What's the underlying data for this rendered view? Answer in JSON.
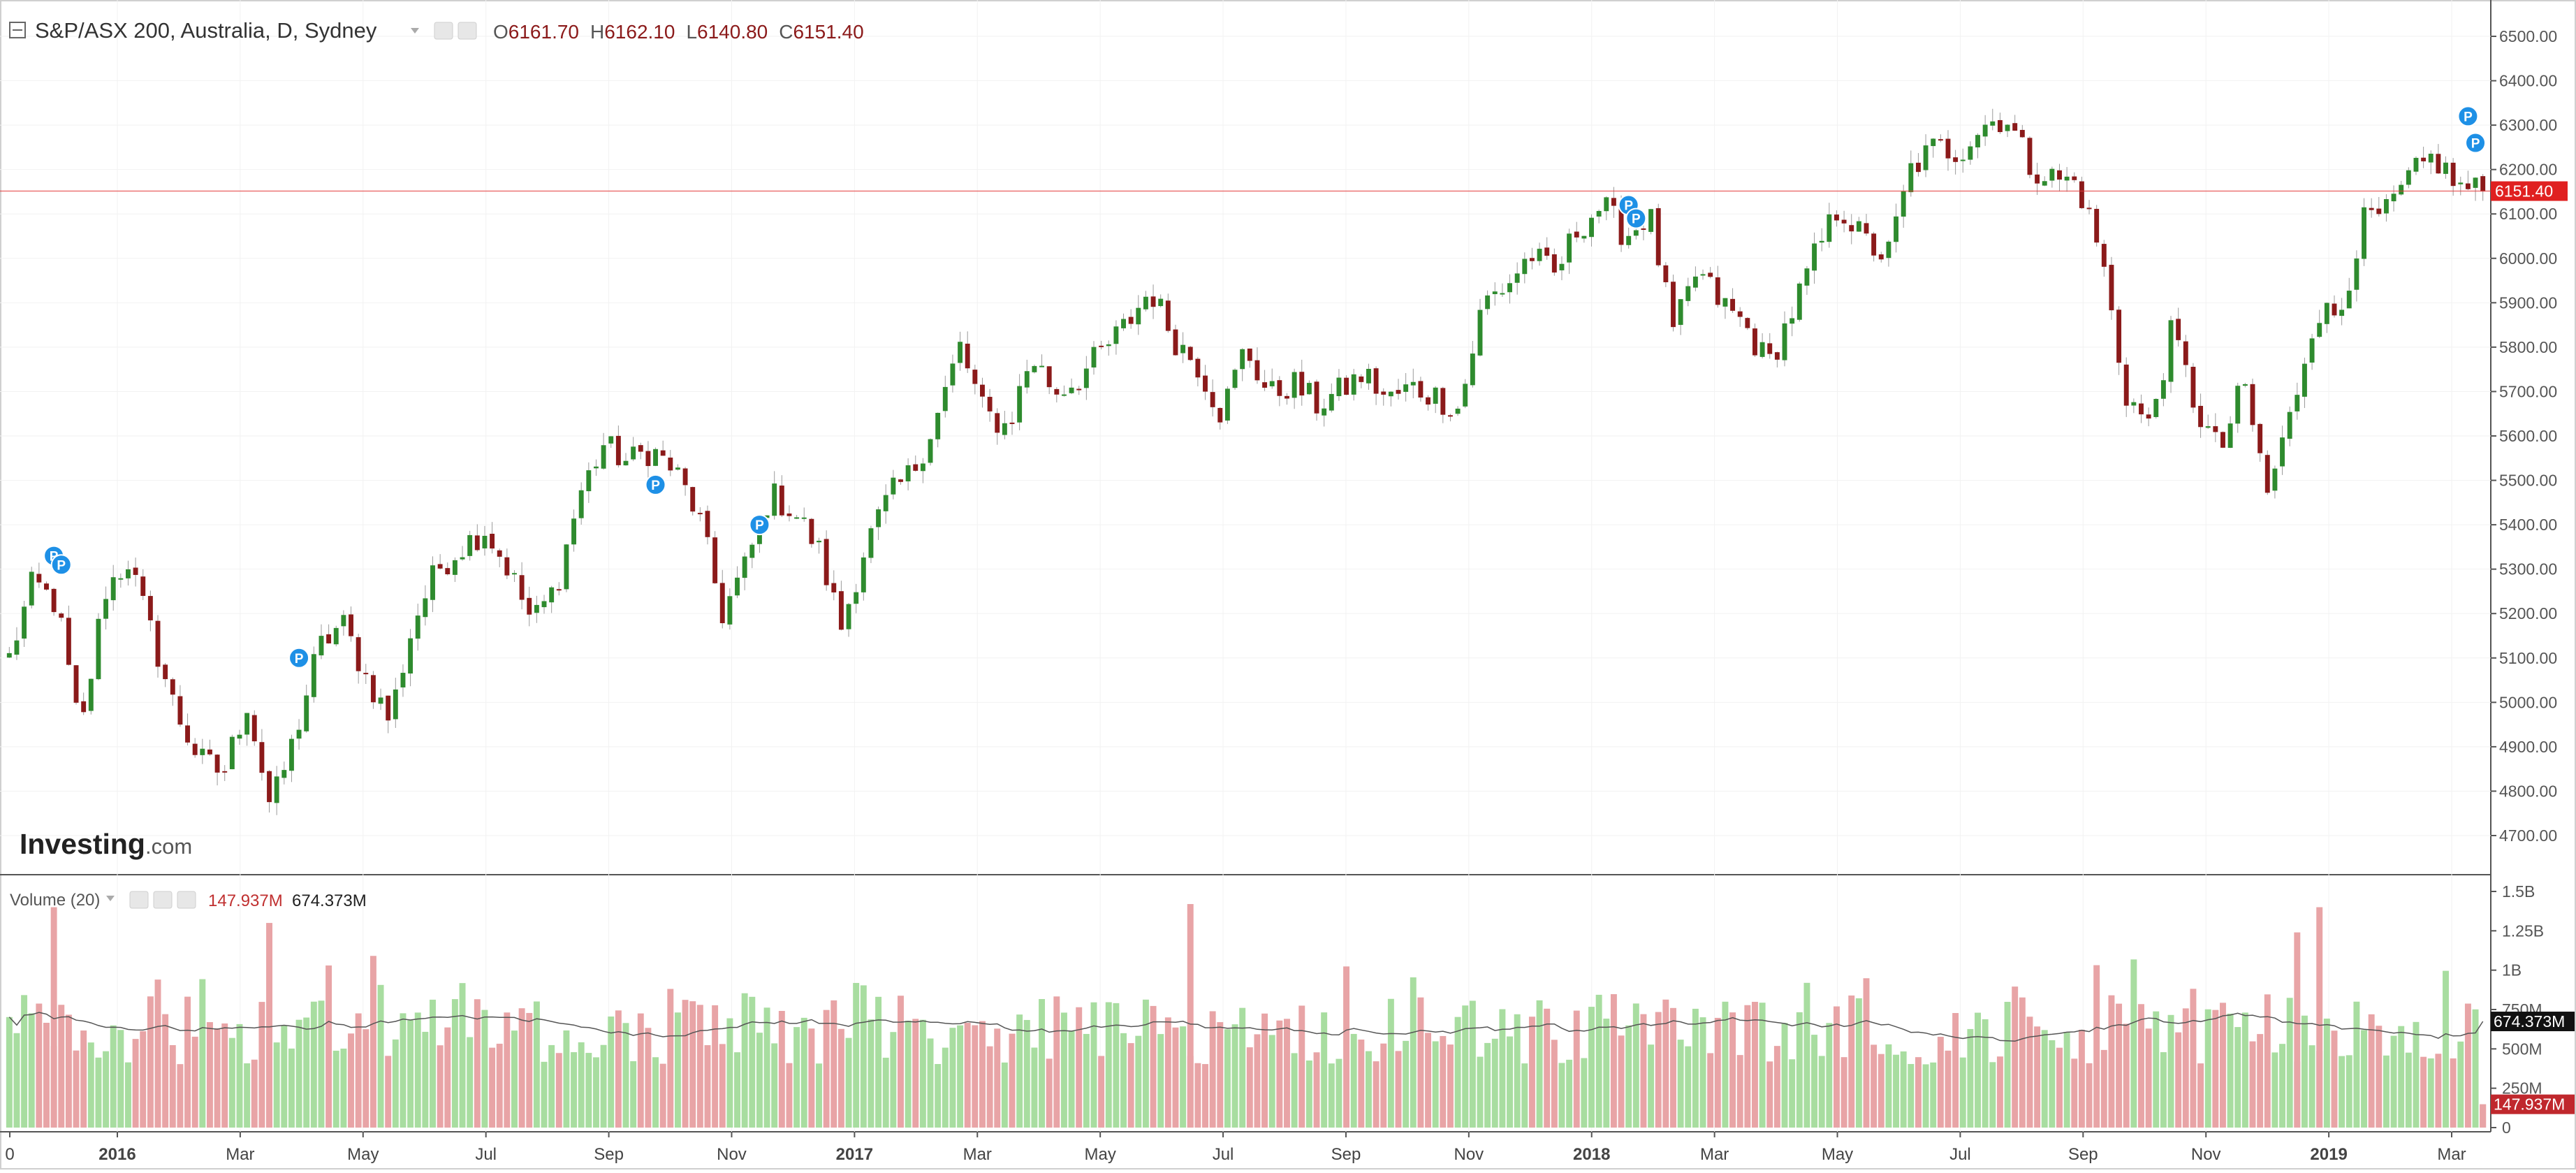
{
  "header": {
    "symbol_title": "S&P/ASX 200, Australia, D, Sydney",
    "ohlc": [
      {
        "prefix": "O",
        "value": "6161.70"
      },
      {
        "prefix": "H",
        "value": "6162.10"
      },
      {
        "prefix": "L",
        "value": "6140.80"
      },
      {
        "prefix": "C",
        "value": "6151.40"
      }
    ]
  },
  "branding": {
    "logo_main": "Investing",
    "logo_suffix": ".com"
  },
  "volume_panel": {
    "title": "Volume (20)",
    "value_current": "147.937M",
    "value_ma": "674.373M"
  },
  "colors": {
    "up": "#2e8b2e",
    "down": "#8b1a1a",
    "vol_up": "#a8dda0",
    "vol_down": "#e8a4a6",
    "price_line": "#e33b3b",
    "marker": "#1e90e6",
    "ma_line": "#555555"
  },
  "chart_data": [
    {
      "type": "candlestick",
      "title": "S&P/ASX 200, Australia, D, Sydney",
      "last_price_label": "6151.40",
      "ylim": [
        4600,
        6550
      ],
      "y_ticks": [
        "6500.00",
        "6400.00",
        "6300.00",
        "6200.00",
        "6100.00",
        "6000.00",
        "5900.00",
        "5800.00",
        "5700.00",
        "5600.00",
        "5500.00",
        "5400.00",
        "5300.00",
        "5200.00",
        "5100.00",
        "5000.00",
        "4900.00",
        "4800.00",
        "4700.00"
      ],
      "x_ticks": [
        "0",
        "2016",
        "Mar",
        "May",
        "Jul",
        "Sep",
        "Nov",
        "2017",
        "Mar",
        "May",
        "Jul",
        "Sep",
        "Nov",
        "2018",
        "Mar",
        "May",
        "Jul",
        "Sep",
        "Nov",
        "2019",
        "Mar"
      ],
      "x_tick_bold": [
        "2016",
        "2017",
        "2018",
        "2019"
      ],
      "closes": [
        5100,
        5270,
        5220,
        4920,
        5250,
        5320,
        5150,
        4980,
        4870,
        4840,
        5000,
        4760,
        4920,
        5120,
        5180,
        5060,
        4960,
        5180,
        5300,
        5350,
        5390,
        5300,
        5180,
        5260,
        5470,
        5580,
        5540,
        5570,
        5520,
        5420,
        5200,
        5310,
        5470,
        5430,
        5350,
        5170,
        5350,
        5460,
        5520,
        5640,
        5800,
        5650,
        5620,
        5780,
        5700,
        5730,
        5790,
        5850,
        5930,
        5820,
        5760,
        5650,
        5800,
        5690,
        5720,
        5670,
        5700,
        5740,
        5680,
        5710,
        5690,
        5660,
        5900,
        5940,
        6010,
        5960,
        6070,
        6120,
        6050,
        6100,
        5830,
        5970,
        5900,
        5850,
        5760,
        5880,
        6010,
        6120,
        6040,
        6000,
        6200,
        6250,
        6240,
        6300,
        6320,
        6210,
        6180,
        6170,
        6010,
        5700,
        5620,
        5840,
        5660,
        5560,
        5720,
        5470,
        5650,
        5880,
        5870,
        6080,
        6100,
        6180,
        6230,
        6160,
        6151
      ],
      "markers": [
        {
          "i": 6,
          "y": 5330,
          "label": "P"
        },
        {
          "i": 7,
          "y": 5310,
          "label": "P"
        },
        {
          "i": 38,
          "y": 5100,
          "label": "P"
        },
        {
          "i": 85,
          "y": 5490,
          "label": "P"
        },
        {
          "i": 99,
          "y": 5400,
          "label": "P"
        },
        {
          "i": 213,
          "y": 6120,
          "label": "P"
        },
        {
          "i": 214,
          "y": 6090,
          "label": "P"
        },
        {
          "i": 323,
          "y": 6320,
          "label": "P"
        },
        {
          "i": 324,
          "y": 6260,
          "label": "P"
        }
      ]
    },
    {
      "type": "bar",
      "title": "Volume (20)",
      "ylim": [
        0,
        1500000000
      ],
      "y_ticks": [
        "1.5B",
        "1.25B",
        "1B",
        "750M",
        "500M",
        "250M",
        "0"
      ],
      "current_volume_label": "147.937M",
      "ma_label": "674.373M",
      "ma20_last": 674373000,
      "volume_last": 147937000,
      "spikes": [
        {
          "i": 6,
          "v": 1400000000
        },
        {
          "i": 34,
          "v": 1300000000
        },
        {
          "i": 155,
          "v": 1420000000
        },
        {
          "i": 301,
          "v": 1240000000
        },
        {
          "i": 304,
          "v": 1400000000
        },
        {
          "i": 325,
          "v": 147937000
        }
      ]
    }
  ]
}
